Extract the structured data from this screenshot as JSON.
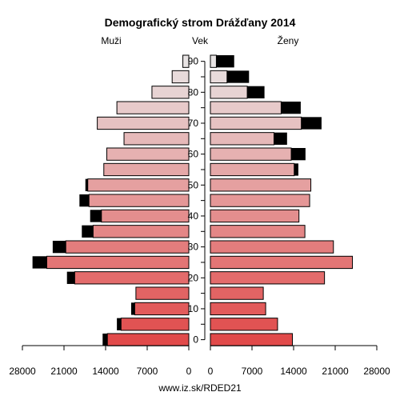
{
  "chart_data": {
    "type": "bar",
    "title": "Demografický strom Drážďany 2014",
    "left_label": "Muži",
    "center_label": "Vek",
    "right_label": "Ženy",
    "footer": "www.iz.sk/RDED21",
    "xlim": [
      0,
      28000
    ],
    "x_ticks": [
      "28000",
      "21000",
      "14000",
      "7000",
      "0",
      "0",
      "7000",
      "14000",
      "21000",
      "28000"
    ],
    "y_ticks": [
      "0",
      "10",
      "20",
      "30",
      "40",
      "50",
      "60",
      "70",
      "80",
      "90"
    ],
    "age_groups": [
      "0-4",
      "5-9",
      "10-14",
      "15-19",
      "20-24",
      "25-29",
      "30-34",
      "35-39",
      "40-44",
      "45-49",
      "50-54",
      "55-59",
      "60-64",
      "65-69",
      "70-74",
      "75-79",
      "80-84",
      "85-89",
      "90+"
    ],
    "male": {
      "base": [
        13700,
        11400,
        9100,
        8900,
        19200,
        23900,
        20700,
        16100,
        14700,
        16800,
        17000,
        14300,
        13800,
        10900,
        15400,
        12100,
        6200,
        2800,
        1000
      ],
      "excess": [
        800,
        700,
        600,
        0,
        1300,
        2400,
        2200,
        1900,
        1900,
        1600,
        400,
        0,
        0,
        0,
        0,
        0,
        0,
        0,
        0
      ]
    },
    "female": {
      "base": [
        13800,
        11300,
        9300,
        8900,
        19200,
        23900,
        20700,
        15900,
        14900,
        16700,
        16900,
        14100,
        13600,
        10700,
        15300,
        11900,
        6200,
        2800,
        1000
      ],
      "excess": [
        0,
        0,
        0,
        0,
        0,
        0,
        0,
        0,
        0,
        0,
        0,
        700,
        2400,
        2200,
        3400,
        3300,
        2900,
        3700,
        3000
      ]
    }
  }
}
